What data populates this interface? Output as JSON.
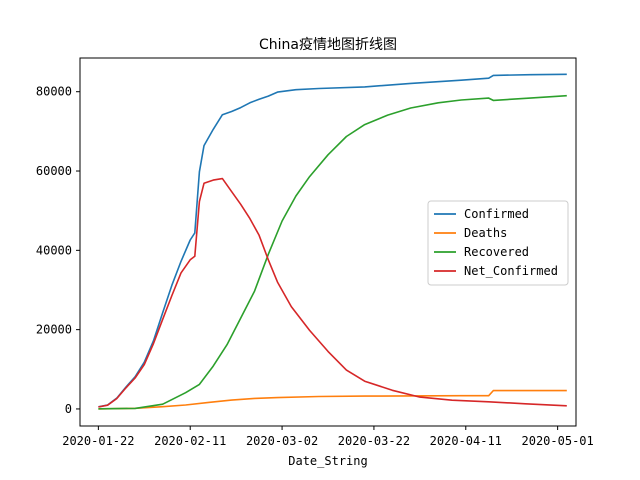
{
  "chart_data": {
    "type": "line",
    "title": "China疫情地图折线图",
    "xlabel": "Date_String",
    "ylabel": "",
    "x_start": "2020-01-22",
    "xlim": [
      "2020-01-18",
      "2020-05-05"
    ],
    "ylim": [
      -4300,
      88500
    ],
    "x_ticks": [
      "2020-01-22",
      "2020-02-11",
      "2020-03-02",
      "2020-03-22",
      "2020-04-11",
      "2020-05-01"
    ],
    "y_ticks": [
      0,
      20000,
      40000,
      60000,
      80000
    ],
    "legend_position": "center-right",
    "grid": false,
    "series": [
      {
        "name": "Confirmed",
        "color": "#1f77b4",
        "points": [
          [
            "2020-01-22",
            548
          ],
          [
            "2020-01-24",
            1000
          ],
          [
            "2020-01-26",
            2700
          ],
          [
            "2020-01-28",
            5500
          ],
          [
            "2020-01-30",
            8100
          ],
          [
            "2020-02-01",
            11800
          ],
          [
            "2020-02-03",
            17200
          ],
          [
            "2020-02-05",
            24300
          ],
          [
            "2020-02-07",
            31200
          ],
          [
            "2020-02-09",
            37200
          ],
          [
            "2020-02-11",
            42600
          ],
          [
            "2020-02-12",
            44400
          ],
          [
            "2020-02-13",
            59800
          ],
          [
            "2020-02-14",
            66400
          ],
          [
            "2020-02-16",
            70500
          ],
          [
            "2020-02-18",
            74200
          ],
          [
            "2020-02-20",
            75000
          ],
          [
            "2020-02-22",
            76000
          ],
          [
            "2020-02-24",
            77200
          ],
          [
            "2020-02-26",
            78100
          ],
          [
            "2020-02-28",
            78900
          ],
          [
            "2020-03-01",
            79900
          ],
          [
            "2020-03-05",
            80500
          ],
          [
            "2020-03-10",
            80800
          ],
          [
            "2020-03-20",
            81200
          ],
          [
            "2020-03-30",
            82100
          ],
          [
            "2020-04-10",
            82900
          ],
          [
            "2020-04-16",
            83400
          ],
          [
            "2020-04-17",
            84100
          ],
          [
            "2020-04-25",
            84300
          ],
          [
            "2020-05-03",
            84400
          ]
        ]
      },
      {
        "name": "Deaths",
        "color": "#ff7f0e",
        "points": [
          [
            "2020-01-22",
            17
          ],
          [
            "2020-01-30",
            170
          ],
          [
            "2020-02-05",
            560
          ],
          [
            "2020-02-10",
            1000
          ],
          [
            "2020-02-15",
            1660
          ],
          [
            "2020-02-20",
            2240
          ],
          [
            "2020-02-25",
            2660
          ],
          [
            "2020-03-01",
            2870
          ],
          [
            "2020-03-10",
            3140
          ],
          [
            "2020-03-20",
            3250
          ],
          [
            "2020-04-10",
            3340
          ],
          [
            "2020-04-16",
            3340
          ],
          [
            "2020-04-17",
            4630
          ],
          [
            "2020-05-03",
            4630
          ]
        ]
      },
      {
        "name": "Recovered",
        "color": "#2ca02c",
        "points": [
          [
            "2020-01-22",
            28
          ],
          [
            "2020-01-30",
            130
          ],
          [
            "2020-02-05",
            1200
          ],
          [
            "2020-02-10",
            4100
          ],
          [
            "2020-02-13",
            6200
          ],
          [
            "2020-02-16",
            10800
          ],
          [
            "2020-02-19",
            16200
          ],
          [
            "2020-02-22",
            22900
          ],
          [
            "2020-02-25",
            29700
          ],
          [
            "2020-02-28",
            39000
          ],
          [
            "2020-03-02",
            47400
          ],
          [
            "2020-03-05",
            53700
          ],
          [
            "2020-03-08",
            58600
          ],
          [
            "2020-03-12",
            64100
          ],
          [
            "2020-03-16",
            68700
          ],
          [
            "2020-03-20",
            71700
          ],
          [
            "2020-03-25",
            74100
          ],
          [
            "2020-03-30",
            75900
          ],
          [
            "2020-04-05",
            77200
          ],
          [
            "2020-04-10",
            77900
          ],
          [
            "2020-04-16",
            78400
          ],
          [
            "2020-04-17",
            77800
          ],
          [
            "2020-04-25",
            78400
          ],
          [
            "2020-05-03",
            79000
          ]
        ]
      },
      {
        "name": "Net_Confirmed",
        "color": "#d62728",
        "points": [
          [
            "2020-01-22",
            500
          ],
          [
            "2020-01-24",
            950
          ],
          [
            "2020-01-26",
            2600
          ],
          [
            "2020-01-28",
            5300
          ],
          [
            "2020-01-30",
            7800
          ],
          [
            "2020-02-01",
            11200
          ],
          [
            "2020-02-03",
            16500
          ],
          [
            "2020-02-05",
            22600
          ],
          [
            "2020-02-07",
            28600
          ],
          [
            "2020-02-09",
            34300
          ],
          [
            "2020-02-11",
            37600
          ],
          [
            "2020-02-12",
            38500
          ],
          [
            "2020-02-13",
            52300
          ],
          [
            "2020-02-14",
            56900
          ],
          [
            "2020-02-16",
            57700
          ],
          [
            "2020-02-18",
            58100
          ],
          [
            "2020-02-20",
            54800
          ],
          [
            "2020-02-22",
            51600
          ],
          [
            "2020-02-24",
            48000
          ],
          [
            "2020-02-26",
            43800
          ],
          [
            "2020-02-28",
            37600
          ],
          [
            "2020-03-01",
            32000
          ],
          [
            "2020-03-04",
            25800
          ],
          [
            "2020-03-08",
            19800
          ],
          [
            "2020-03-12",
            14500
          ],
          [
            "2020-03-16",
            9800
          ],
          [
            "2020-03-20",
            7000
          ],
          [
            "2020-03-26",
            4700
          ],
          [
            "2020-04-01",
            3000
          ],
          [
            "2020-04-08",
            2200
          ],
          [
            "2020-04-16",
            1800
          ],
          [
            "2020-04-24",
            1300
          ],
          [
            "2020-05-03",
            800
          ]
        ]
      }
    ]
  }
}
